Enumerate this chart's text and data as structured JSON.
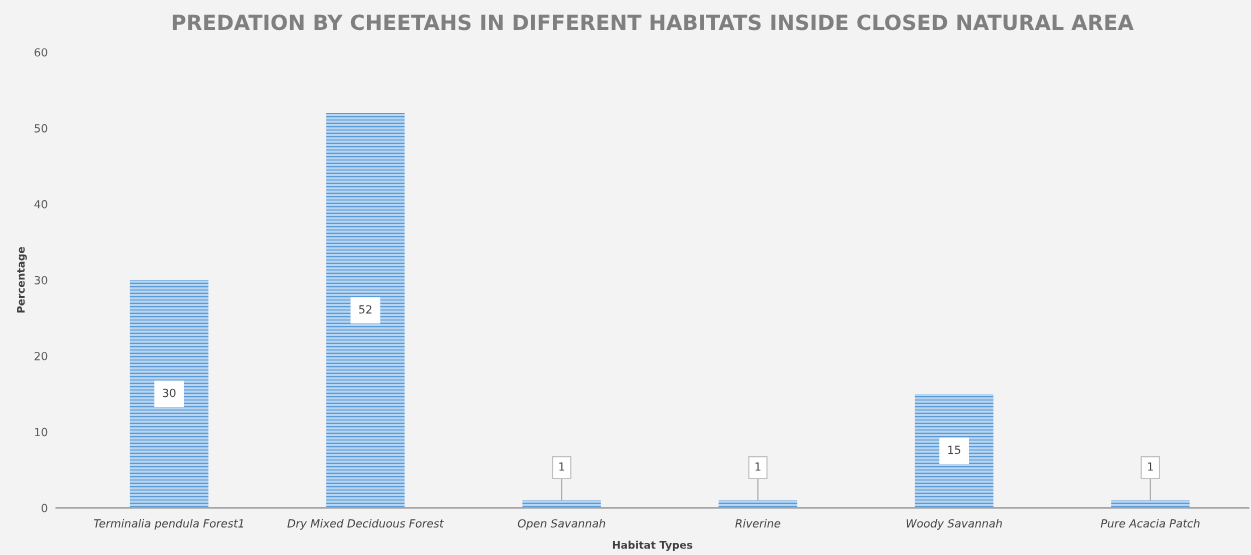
{
  "chart_data": {
    "type": "bar",
    "title": "PREDATION BY CHEETAHS IN DIFFERENT HABITATS INSIDE CLOSED NATURAL AREA",
    "xlabel": "Habitat Types",
    "ylabel": "Percentage",
    "categories": [
      "Terminalia pendula Forest1",
      "Dry Mixed Deciduous Forest",
      "Open Savannah",
      "Riverine",
      "Woody Savannah",
      "Pure Acacia Patch"
    ],
    "values": [
      30,
      52,
      1,
      1,
      15,
      1
    ],
    "color": "#5b9bd5",
    "ylim": [
      0,
      60
    ],
    "yticks": [
      0,
      10,
      20,
      30,
      40,
      50,
      60
    ],
    "grid": false,
    "data_labels": true
  }
}
